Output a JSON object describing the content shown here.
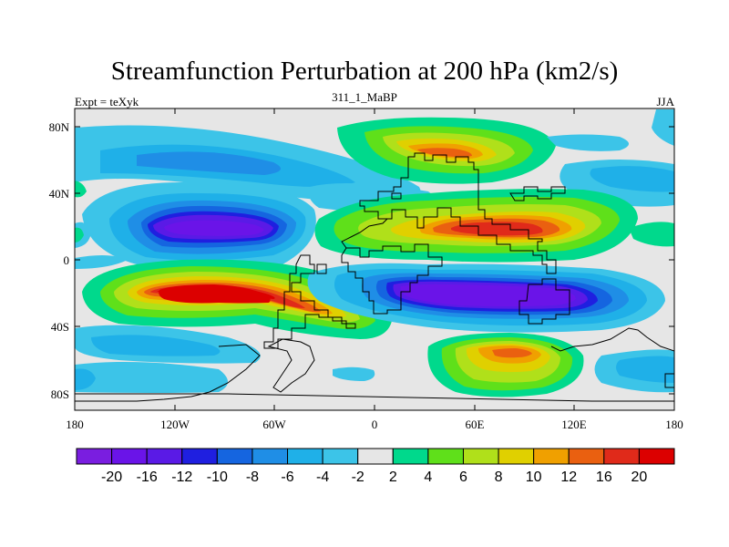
{
  "title": "Streamfunction Perturbation at 200 hPa (km2/s)",
  "left_label": "Expt = teXyk",
  "center_label": "311_1_MaBP",
  "right_label": "JJA",
  "lat_ticks": [
    "80N",
    "40N",
    "0",
    "40S",
    "80S"
  ],
  "lon_ticks": [
    "180",
    "120W",
    "60W",
    "0",
    "60E",
    "120E",
    "180"
  ],
  "colorbar": {
    "colors": [
      "#7a1ee0",
      "#6a14e8",
      "#5a1ae6",
      "#1f1fe0",
      "#1565e0",
      "#1f8ee6",
      "#1fb0e8",
      "#3cc4e8",
      "#e6e6e6",
      "#00d98c",
      "#5fe01a",
      "#b0e01a",
      "#e0d000",
      "#f0a000",
      "#ea6010",
      "#e02a1a",
      "#dc0000"
    ],
    "labels": [
      "-20",
      "-16",
      "-12",
      "-10",
      "-8",
      "-6",
      "-4",
      "-2",
      "2",
      "4",
      "6",
      "8",
      "10",
      "12",
      "16",
      "20"
    ]
  }
}
